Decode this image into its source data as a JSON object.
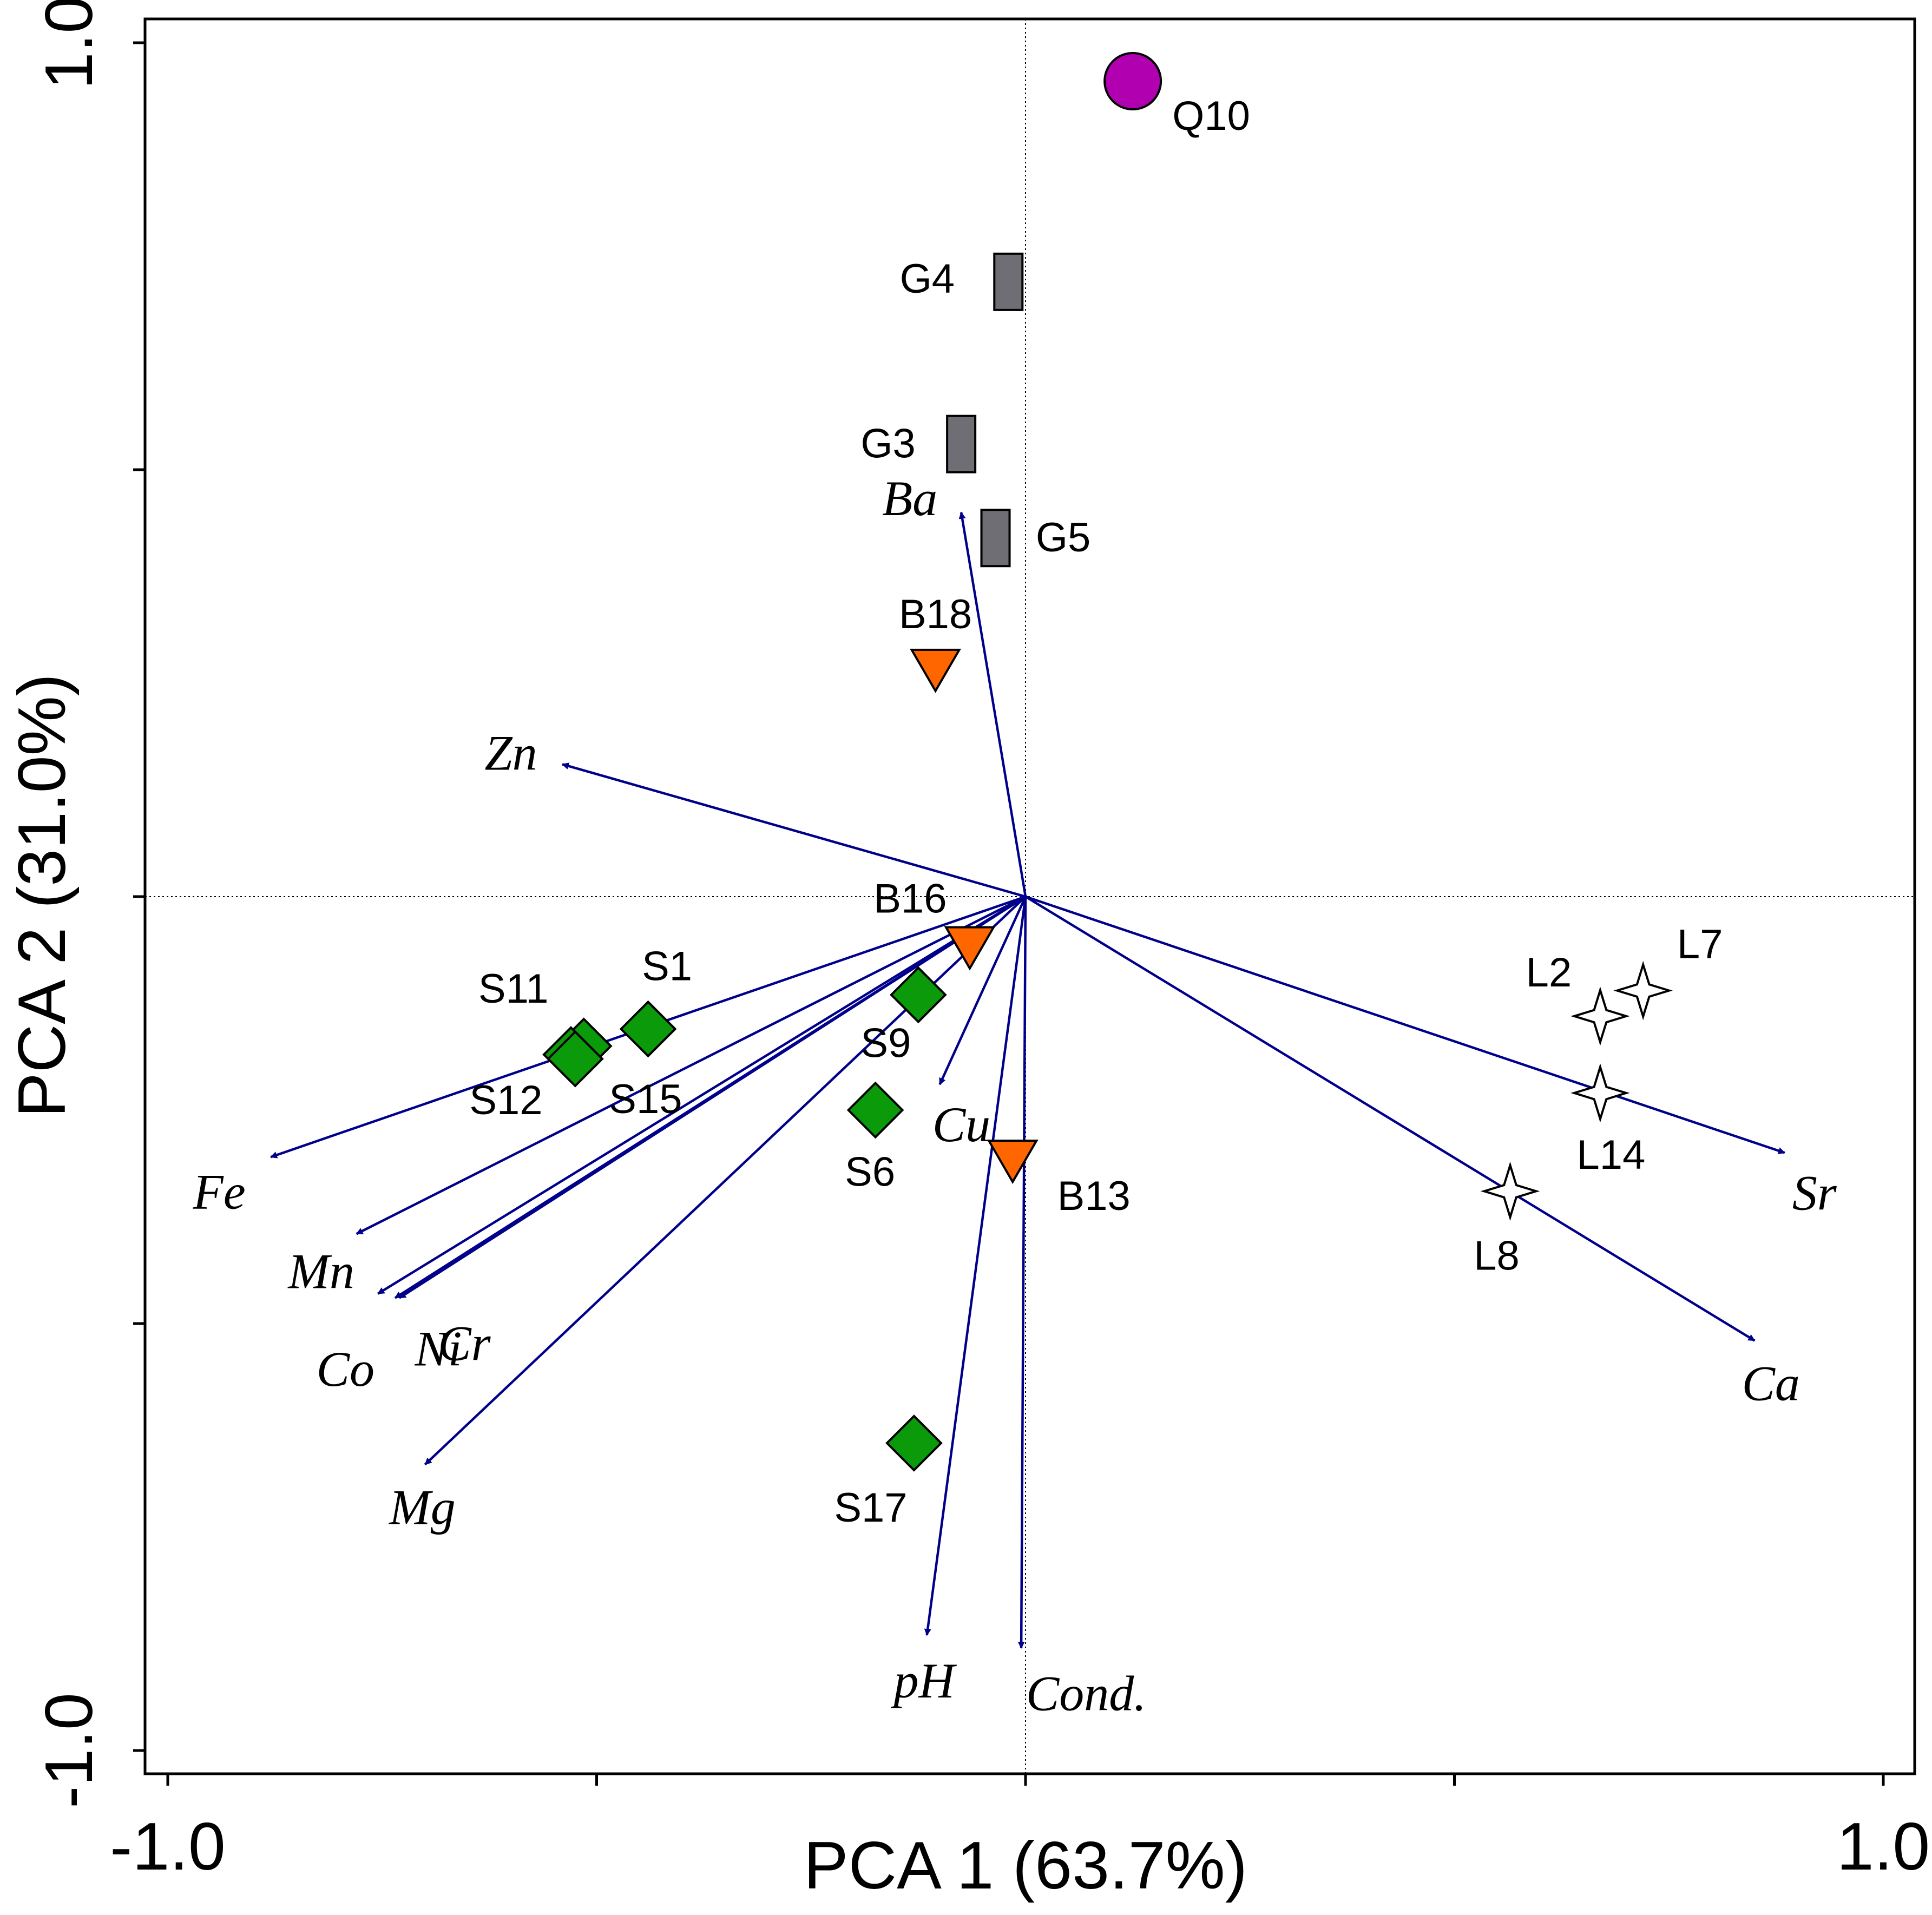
{
  "chart_data": {
    "type": "scatter",
    "subtype": "pca-biplot",
    "xlabel": "PCA 1 (63.7%)",
    "ylabel": "PCA 2 (31.0%)",
    "xlim": [
      -1.0,
      1.0
    ],
    "ylim": [
      -1.0,
      1.0
    ],
    "xticks": [
      -1.0,
      -0.5,
      0,
      0.5,
      1.0
    ],
    "yticks": [
      -1.0,
      -0.5,
      0,
      0.5,
      1.0
    ],
    "xtick_labels": [
      "-1.0",
      "",
      "",
      "",
      "1.0"
    ],
    "ytick_labels": [
      "-1.0",
      "",
      "",
      "",
      "1.0"
    ],
    "colors": {
      "vector": "#00008b",
      "S": "#0a9a0a",
      "B": "#ff6600",
      "G": "#6e6e74",
      "Q": "#b000b0",
      "L": "#ffffff"
    },
    "vectors": [
      {
        "name": "Ba",
        "x": -0.075,
        "y": 0.45
      },
      {
        "name": "Zn",
        "x": -0.54,
        "y": 0.155
      },
      {
        "name": "Fe",
        "x": -0.88,
        "y": -0.305
      },
      {
        "name": "Mn",
        "x": -0.78,
        "y": -0.395
      },
      {
        "name": "Cr",
        "x": -0.73,
        "y": -0.47
      },
      {
        "name": "Co",
        "x": -0.755,
        "y": -0.465
      },
      {
        "name": "Ni",
        "x": -0.735,
        "y": -0.47
      },
      {
        "name": "Mg",
        "x": -0.7,
        "y": -0.665
      },
      {
        "name": "Cu",
        "x": -0.1,
        "y": -0.22
      },
      {
        "name": "pH",
        "x": -0.115,
        "y": -0.865
      },
      {
        "name": "Cond.",
        "x": -0.005,
        "y": -0.88
      },
      {
        "name": "Sr",
        "x": 0.885,
        "y": -0.3
      },
      {
        "name": "Ca",
        "x": 0.85,
        "y": -0.52
      }
    ],
    "series": [
      {
        "name": "S",
        "marker": "diamond",
        "points": [
          {
            "label": "S1",
            "x": -0.44,
            "y": -0.155
          },
          {
            "label": "S11",
            "x": -0.515,
            "y": -0.175
          },
          {
            "label": "S12",
            "x": -0.53,
            "y": -0.185
          },
          {
            "label": "S15",
            "x": -0.525,
            "y": -0.19
          },
          {
            "label": "S9",
            "x": -0.125,
            "y": -0.115
          },
          {
            "label": "S6",
            "x": -0.175,
            "y": -0.25
          },
          {
            "label": "S17",
            "x": -0.13,
            "y": -0.64
          }
        ]
      },
      {
        "name": "B",
        "marker": "triangle-down",
        "points": [
          {
            "label": "B18",
            "x": -0.105,
            "y": 0.265
          },
          {
            "label": "B16",
            "x": -0.065,
            "y": -0.06
          },
          {
            "label": "B13",
            "x": -0.015,
            "y": -0.31
          }
        ]
      },
      {
        "name": "G",
        "marker": "rectangle",
        "points": [
          {
            "label": "G4",
            "x": -0.02,
            "y": 0.72
          },
          {
            "label": "G3",
            "x": -0.075,
            "y": 0.53
          },
          {
            "label": "G5",
            "x": -0.035,
            "y": 0.42
          }
        ]
      },
      {
        "name": "Q",
        "marker": "circle",
        "points": [
          {
            "label": "Q10",
            "x": 0.125,
            "y": 0.955
          }
        ]
      },
      {
        "name": "L",
        "marker": "star",
        "points": [
          {
            "label": "L2",
            "x": 0.67,
            "y": -0.14
          },
          {
            "label": "L7",
            "x": 0.72,
            "y": -0.11
          },
          {
            "label": "L14",
            "x": 0.67,
            "y": -0.23
          },
          {
            "label": "L8",
            "x": 0.565,
            "y": -0.345
          }
        ]
      }
    ]
  }
}
